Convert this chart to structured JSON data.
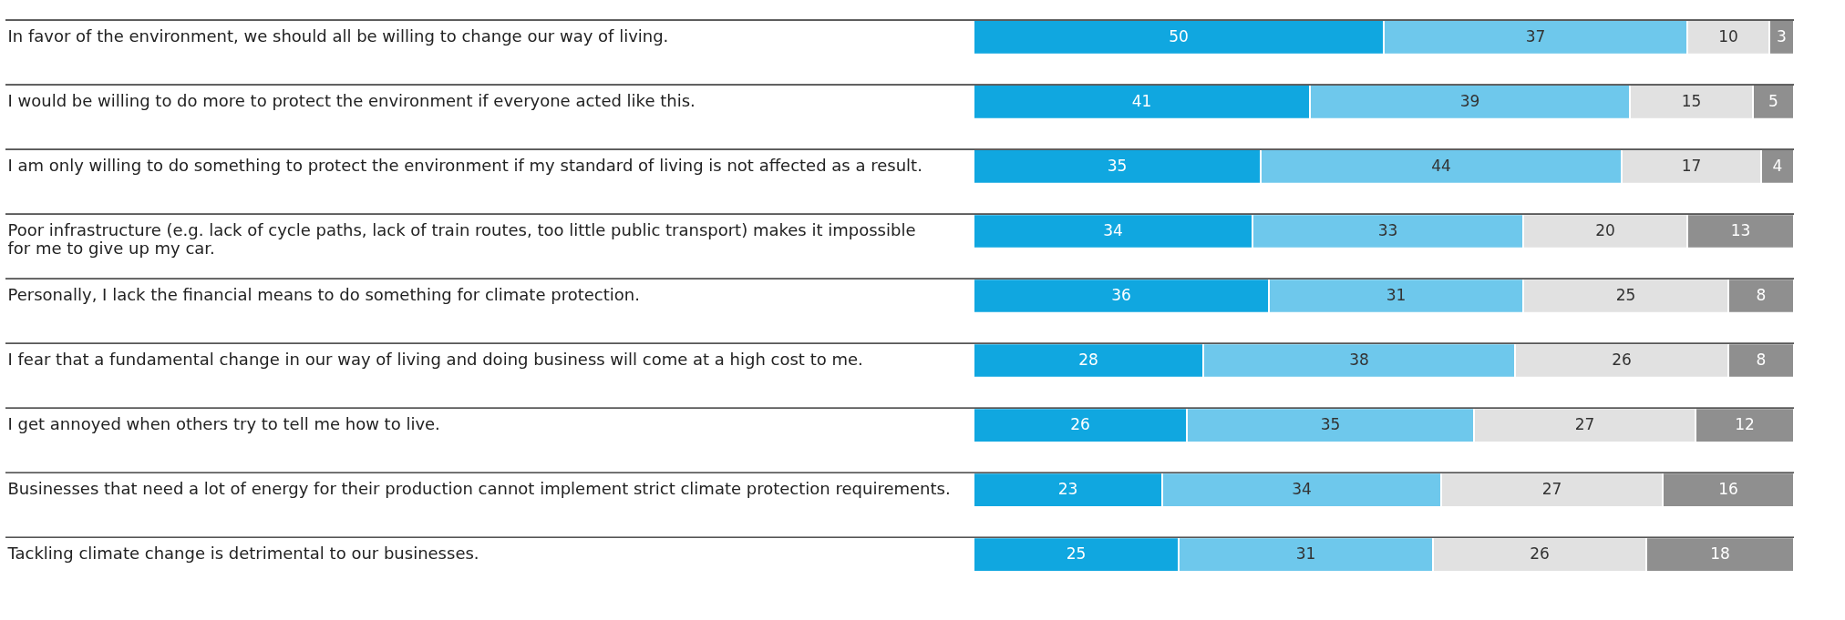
{
  "chart_data": {
    "type": "bar",
    "orientation": "horizontal",
    "stacked": true,
    "data_labels": true,
    "grid": "y",
    "categories": [
      "In favor of the environment, we should all be willing to change our way of living.",
      "I would be willing to do more to protect the environment if everyone acted like this.",
      "I am only willing to do something to protect the environment if my standard of living is not affected as a result.",
      "Poor infrastructure (e.g. lack of cycle paths, lack of train routes, too little public transport) makes it impossible for me to give up my car.",
      "Personally, I lack the financial means to do something for climate protection.",
      "I fear that a fundamental change in our way of living and doing business will come at a high cost to me.",
      "I get annoyed when others try to tell me how to live.",
      "Businesses that need a lot of energy for their production cannot implement strict climate protection requirements.",
      "Tackling climate change is detrimental to our businesses."
    ],
    "series": [
      {
        "color": "#10a7e0",
        "values": [
          50,
          41,
          35,
          34,
          36,
          28,
          26,
          23,
          25
        ]
      },
      {
        "color": "#6ec8ec",
        "values": [
          37,
          39,
          44,
          33,
          31,
          38,
          35,
          34,
          31
        ]
      },
      {
        "color": "#e1e1e1",
        "values": [
          10,
          15,
          17,
          20,
          25,
          26,
          27,
          27,
          26
        ]
      },
      {
        "color": "#8f8f8f",
        "values": [
          3,
          5,
          4,
          13,
          8,
          8,
          12,
          16,
          18
        ]
      }
    ]
  }
}
